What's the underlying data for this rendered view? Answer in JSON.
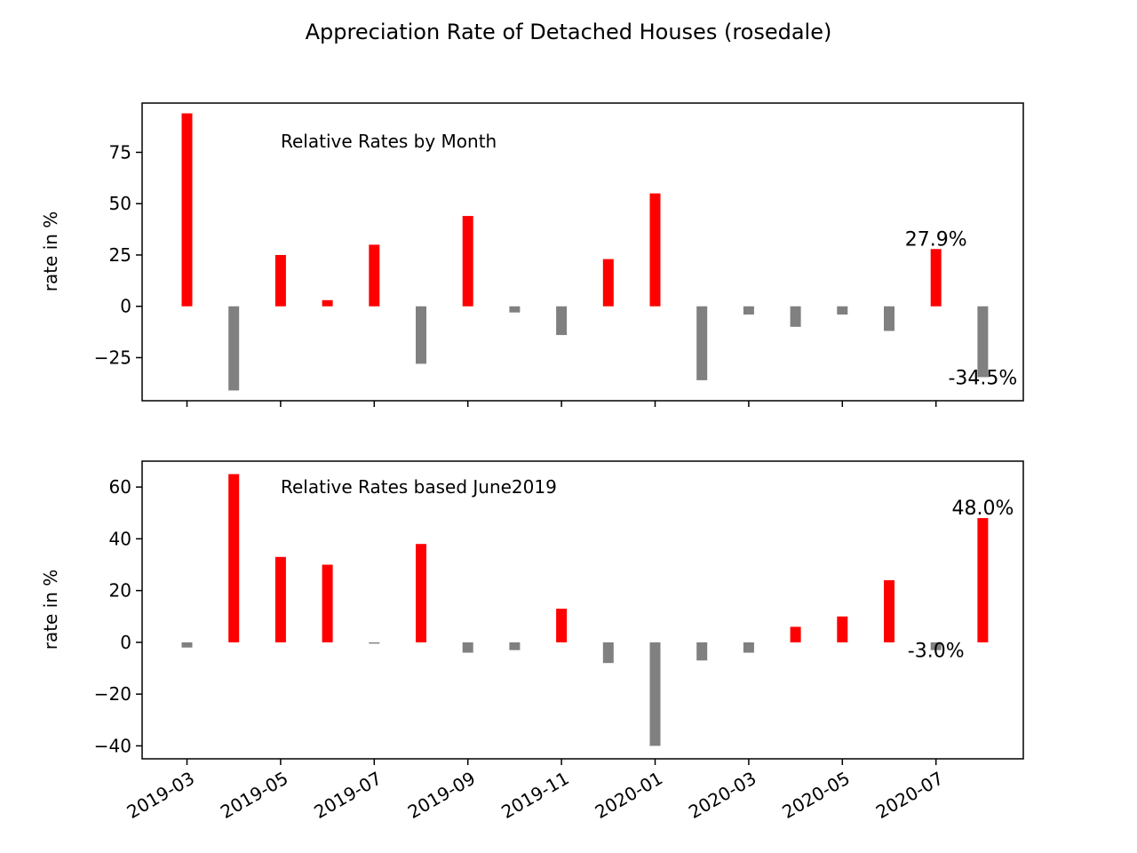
{
  "title": "Appreciation Rate of Detached Houses (rosedale)",
  "chart_data": [
    {
      "type": "bar",
      "annotation_title": "Relative Rates by Month",
      "ylabel": "rate in %",
      "xlabel": "",
      "ylim": [
        -46,
        99
      ],
      "yticks": [
        -25,
        0,
        25,
        50,
        75
      ],
      "ytick_labels": [
        "−25",
        "0",
        "25",
        "50",
        "75"
      ],
      "positive_color": "#ff0000",
      "negative_color": "#808080",
      "x": [
        "2019-03",
        "2019-04",
        "2019-05",
        "2019-06",
        "2019-07",
        "2019-08",
        "2019-09",
        "2019-10",
        "2019-11",
        "2019-12",
        "2020-01",
        "2020-02",
        "2020-03",
        "2020-04",
        "2020-05",
        "2020-06",
        "2020-07",
        "2020-08"
      ],
      "values": [
        94,
        -41,
        25,
        3,
        30,
        -28,
        44,
        -3,
        -14,
        23,
        55,
        -36,
        -4,
        -10,
        -4,
        -12,
        27.9,
        -34.5
      ],
      "data_labels": [
        {
          "index": 16,
          "text": "27.9%"
        },
        {
          "index": 17,
          "text": "-34.5%"
        }
      ],
      "show_xtick_labels": false
    },
    {
      "type": "bar",
      "annotation_title": "Relative Rates based June2019",
      "ylabel": "rate in %",
      "xlabel": "",
      "ylim": [
        -45,
        70
      ],
      "yticks": [
        -40,
        -20,
        0,
        20,
        40,
        60
      ],
      "ytick_labels": [
        "−40",
        "−20",
        "0",
        "20",
        "40",
        "60"
      ],
      "positive_color": "#ff0000",
      "negative_color": "#808080",
      "x": [
        "2019-03",
        "2019-04",
        "2019-05",
        "2019-06",
        "2019-07",
        "2019-08",
        "2019-09",
        "2019-10",
        "2019-11",
        "2019-12",
        "2020-01",
        "2020-02",
        "2020-03",
        "2020-04",
        "2020-05",
        "2020-06",
        "2020-07",
        "2020-08"
      ],
      "values": [
        -2,
        65,
        33,
        30,
        -0.5,
        38,
        -4,
        -3,
        13,
        -8,
        -40,
        -7,
        -4,
        6,
        10,
        24,
        -3.0,
        48.0
      ],
      "data_labels": [
        {
          "index": 16,
          "text": "-3.0%"
        },
        {
          "index": 17,
          "text": "48.0%"
        }
      ],
      "show_xtick_labels": true
    }
  ],
  "xtick_labels": [
    "2019-03",
    "2019-05",
    "2019-07",
    "2019-09",
    "2019-11",
    "2020-01",
    "2020-03",
    "2020-05",
    "2020-07"
  ]
}
